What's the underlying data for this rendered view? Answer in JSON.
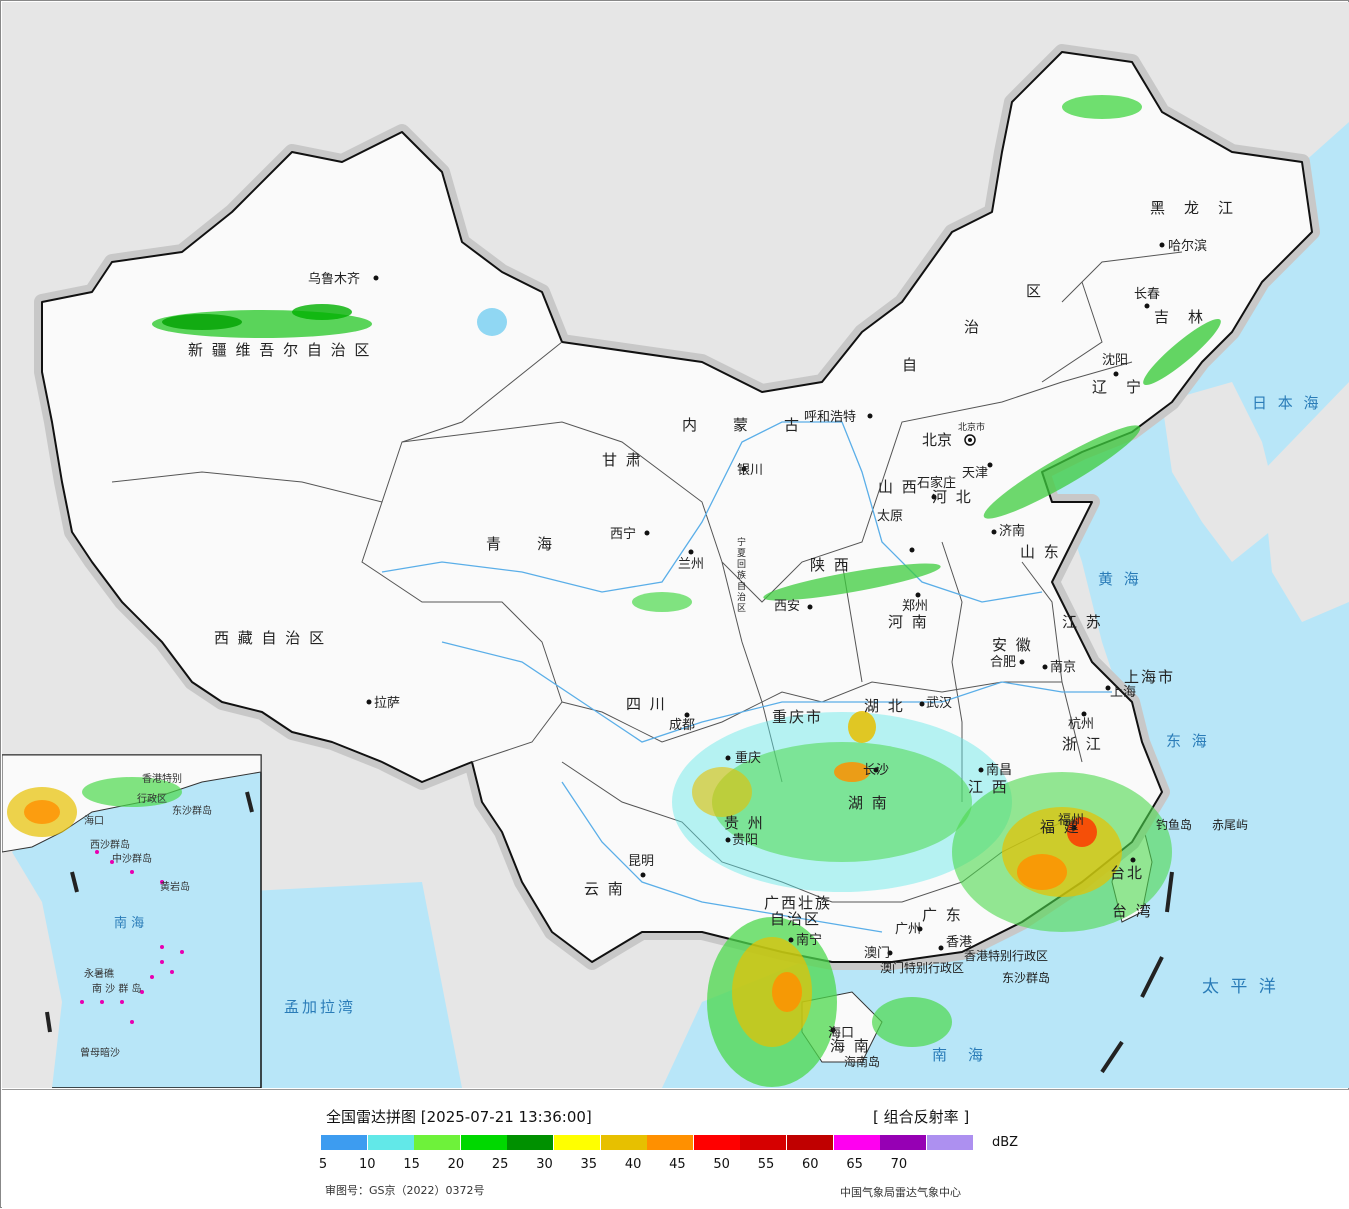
{
  "map": {
    "sea_color": "#b8e6f8",
    "land_color": "#e4e4e4",
    "china_color": "#fafafa",
    "provinces": [
      {
        "name": "新 疆 维 吾 尔 自 治 区"
      },
      {
        "name": "西 藏 自 治 区"
      },
      {
        "name": "青　　海"
      },
      {
        "name": "甘 肃"
      },
      {
        "name": "内　　蒙　　古"
      },
      {
        "name": "黑　龙　江"
      },
      {
        "name": "吉　林"
      },
      {
        "name": "辽　宁"
      },
      {
        "name": "河 北"
      },
      {
        "name": "山 西"
      },
      {
        "name": "山 东"
      },
      {
        "name": "陕 西"
      },
      {
        "name": "河 南"
      },
      {
        "name": "四 川"
      },
      {
        "name": "重庆市"
      },
      {
        "name": "湖 北"
      },
      {
        "name": "安 徽"
      },
      {
        "name": "江 苏"
      },
      {
        "name": "上海市"
      },
      {
        "name": "浙 江"
      },
      {
        "name": "湖 南"
      },
      {
        "name": "江 西"
      },
      {
        "name": "贵 州"
      },
      {
        "name": "云 南"
      },
      {
        "name": "广西壮族"
      },
      {
        "name": "自治区"
      },
      {
        "name": "广 东"
      },
      {
        "name": "福 建"
      },
      {
        "name": "台北"
      },
      {
        "name": "台 湾"
      },
      {
        "name": "海 南"
      },
      {
        "name": "宁夏回族自治区"
      },
      {
        "name": "区"
      },
      {
        "name": "治"
      },
      {
        "name": "自"
      }
    ],
    "cities": [
      {
        "name": "乌鲁木齐"
      },
      {
        "name": "拉萨"
      },
      {
        "name": "西宁"
      },
      {
        "name": "兰州"
      },
      {
        "name": "银川"
      },
      {
        "name": "呼和浩特"
      },
      {
        "name": "北京"
      },
      {
        "name": "天津"
      },
      {
        "name": "石家庄"
      },
      {
        "name": "太原"
      },
      {
        "name": "济南"
      },
      {
        "name": "郑州"
      },
      {
        "name": "西安"
      },
      {
        "name": "成都"
      },
      {
        "name": "重庆"
      },
      {
        "name": "武汉"
      },
      {
        "name": "合肥"
      },
      {
        "name": "南京"
      },
      {
        "name": "上海"
      },
      {
        "name": "杭州"
      },
      {
        "name": "长沙"
      },
      {
        "name": "南昌"
      },
      {
        "name": "福州"
      },
      {
        "name": "贵阳"
      },
      {
        "name": "昆明"
      },
      {
        "name": "南宁"
      },
      {
        "name": "广州"
      },
      {
        "name": "香港"
      },
      {
        "name": "澳门"
      },
      {
        "name": "海口"
      },
      {
        "name": "哈尔滨"
      },
      {
        "name": "长春"
      },
      {
        "name": "沈阳"
      },
      {
        "name": "台北"
      }
    ],
    "seas": [
      {
        "name": "日 本 海"
      },
      {
        "name": "黄 海"
      },
      {
        "name": "东 海"
      },
      {
        "name": "太 平 洋"
      },
      {
        "name": "南　海"
      },
      {
        "name": "孟加拉湾"
      }
    ],
    "misc": [
      {
        "name": "香港特别行政区"
      },
      {
        "name": "澳门特别行政区"
      },
      {
        "name": "东沙群岛"
      },
      {
        "name": "海南岛"
      },
      {
        "name": "钓鱼岛"
      },
      {
        "name": "赤尾屿"
      },
      {
        "name": "北京市"
      }
    ],
    "inset": {
      "labels": [
        {
          "name": "香港特别"
        },
        {
          "name": "行政区"
        },
        {
          "name": "东沙群岛"
        },
        {
          "name": "海口"
        },
        {
          "name": "西沙群岛"
        },
        {
          "name": "中沙群岛"
        },
        {
          "name": "黄岩岛"
        },
        {
          "name": "南 海"
        },
        {
          "name": "永暑礁"
        },
        {
          "name": "南 沙 群 岛"
        },
        {
          "name": "曾母暗沙"
        }
      ]
    }
  },
  "legend": {
    "title": "全国雷达拼图 [2025-07-21 13:36:00]",
    "product": "[ 组合反射率 ]",
    "unit": "dBZ",
    "colors": [
      "#3d9cf0",
      "#62e8e8",
      "#6ef23a",
      "#00d800",
      "#009000",
      "#ffff00",
      "#e7c000",
      "#ff9000",
      "#ff0000",
      "#d60000",
      "#c00000",
      "#ff00f0",
      "#9600b4",
      "#ad90f0"
    ],
    "ticks": [
      "5",
      "10",
      "15",
      "20",
      "25",
      "30",
      "35",
      "40",
      "45",
      "50",
      "55",
      "60",
      "65",
      "70"
    ],
    "approval": "审图号：GS京（2022）0372号",
    "agency": "中国气象局雷达气象中心"
  }
}
